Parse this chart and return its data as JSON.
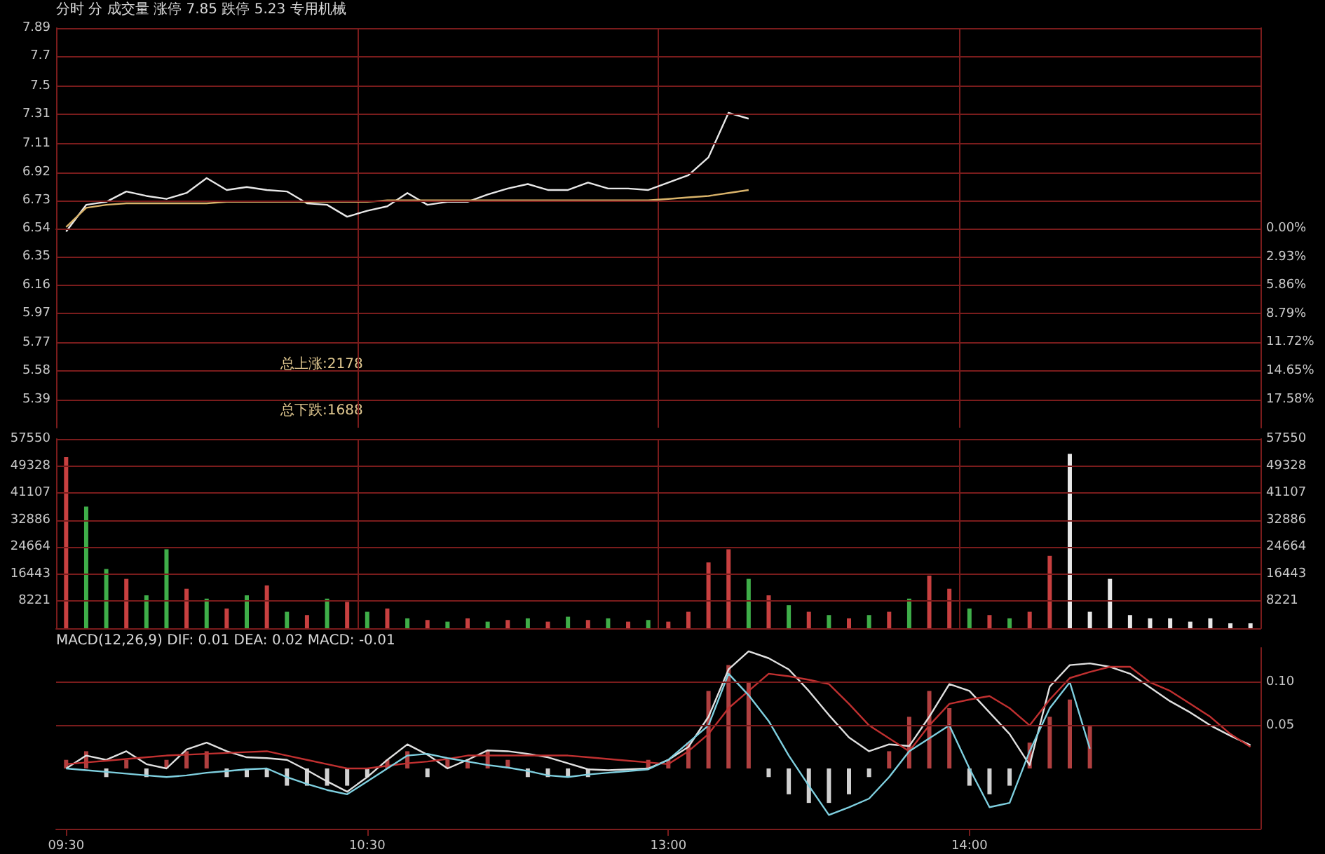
{
  "chart_data": [
    {
      "type": "line",
      "title": "分时 分 成交量 涨停 7.85 跌停 5.23 专用机械",
      "annotations": [
        "总上涨:2178",
        "总下跌:1688"
      ],
      "marker": "none",
      "grid": true,
      "tick_labels": "y",
      "categories": [
        null,
        null,
        null,
        null,
        null,
        null,
        null,
        null,
        null,
        null,
        null,
        null,
        null,
        null,
        null,
        null,
        null,
        null,
        null,
        null,
        null,
        null,
        null,
        null,
        null,
        null,
        null,
        null,
        null,
        null,
        null,
        null,
        null,
        null,
        null,
        null,
        null,
        null,
        null,
        null,
        null,
        null,
        null,
        null,
        null,
        null,
        null,
        null,
        null,
        null,
        null,
        null,
        null,
        null,
        null,
        null,
        null,
        null,
        null,
        null
      ],
      "ylim": [
        5.2,
        7.89
      ],
      "yticks": [
        5.39,
        5.58,
        5.77,
        5.97,
        6.16,
        6.35,
        6.54,
        6.73,
        6.92,
        7.11,
        7.31,
        7.5,
        7.7,
        7.89
      ],
      "y2lim": [
        -20.49,
        20.64
      ],
      "y2ticks": [
        {
          "value": 0,
          "label": "0.00%"
        },
        {
          "value": -2.93,
          "label": "2.93%"
        },
        {
          "value": -5.86,
          "label": "5.86%"
        },
        {
          "value": -8.79,
          "label": "8.79%"
        },
        {
          "value": -11.72,
          "label": "11.72%"
        },
        {
          "value": -14.65,
          "label": "14.65%"
        },
        {
          "value": -17.58,
          "label": "17.58%"
        }
      ],
      "series": [
        {
          "color": "#e8e8e8",
          "values": [
            6.52,
            6.7,
            6.72,
            6.79,
            6.76,
            6.74,
            6.78,
            6.88,
            6.8,
            6.82,
            6.8,
            6.79,
            6.71,
            6.7,
            6.62,
            6.66,
            6.69,
            6.78,
            6.7,
            6.72,
            6.72,
            6.77,
            6.81,
            6.84,
            6.8,
            6.8,
            6.85,
            6.81,
            6.81,
            6.8,
            6.85,
            6.9,
            7.02,
            7.32,
            7.28,
            null,
            null,
            null,
            null,
            null,
            null,
            null,
            null,
            null,
            null,
            null,
            null,
            null,
            null,
            null,
            null,
            null,
            null,
            null,
            null,
            null,
            null,
            null,
            null,
            null
          ]
        },
        {
          "color": "#d9b36a",
          "values": [
            6.55,
            6.68,
            6.7,
            6.71,
            6.71,
            6.71,
            6.71,
            6.71,
            6.72,
            6.72,
            6.72,
            6.72,
            6.72,
            6.72,
            6.72,
            6.72,
            6.73,
            6.73,
            6.73,
            6.73,
            6.73,
            6.73,
            6.73,
            6.73,
            6.73,
            6.73,
            6.73,
            6.73,
            6.73,
            6.73,
            6.74,
            6.75,
            6.76,
            6.78,
            6.8,
            null,
            null,
            null,
            null,
            null,
            null,
            null,
            null,
            null,
            null,
            null,
            null,
            null,
            null,
            null,
            null,
            null,
            null,
            null,
            null,
            null,
            null,
            null,
            null,
            null
          ]
        }
      ]
    },
    {
      "type": "bar",
      "grid": true,
      "tick_labels": "y",
      "categories": [
        null,
        null,
        null,
        null,
        null,
        null,
        null,
        null,
        null,
        null,
        null,
        null,
        null,
        null,
        null,
        null,
        null,
        null,
        null,
        null,
        null,
        null,
        null,
        null,
        null,
        null,
        null,
        null,
        null,
        null,
        null,
        null,
        null,
        null,
        null,
        null,
        null,
        null,
        null,
        null,
        null,
        null,
        null,
        null,
        null,
        null,
        null,
        null,
        null,
        null,
        null,
        null,
        null,
        null,
        null,
        null,
        null,
        null,
        null,
        null
      ],
      "ylim": [
        0,
        57550
      ],
      "yticks": [
        8221,
        16443,
        24664,
        32886,
        41107,
        49328,
        57550
      ],
      "y2lim": [
        0,
        57550
      ],
      "y2ticks": [
        8221,
        16443,
        24664,
        32886,
        41107,
        49328,
        57550
      ],
      "values": [
        52000,
        37000,
        18000,
        15000,
        10000,
        24000,
        12000,
        9000,
        6000,
        10000,
        13000,
        5000,
        4000,
        9000,
        8000,
        5000,
        6000,
        3000,
        2500,
        2000,
        3000,
        2000,
        2500,
        3000,
        2000,
        3500,
        2500,
        3000,
        2000,
        2500,
        2000,
        5000,
        20000,
        24000,
        15000,
        10000,
        7000,
        5000,
        4000,
        3000,
        4000,
        5000,
        9000,
        16000,
        12000,
        6000,
        4000,
        3000,
        5000,
        22000,
        53000,
        5000,
        15000,
        4000,
        3000,
        3000,
        2000,
        3000,
        1500,
        1500
      ],
      "colors": [
        "#c84040",
        "#3fae49",
        "#3fae49",
        "#c84040",
        "#3fae49",
        "#3fae49",
        "#c84040",
        "#3fae49",
        "#c84040",
        "#3fae49",
        "#c84040",
        "#3fae49",
        "#c84040",
        "#3fae49",
        "#c84040",
        "#3fae49",
        "#c84040",
        "#3fae49",
        "#c84040",
        "#3fae49",
        "#c84040",
        "#3fae49",
        "#c84040",
        "#3fae49",
        "#c84040",
        "#3fae49",
        "#c84040",
        "#3fae49",
        "#c84040",
        "#3fae49",
        "#c84040",
        "#c84040",
        "#c84040",
        "#c84040",
        "#3fae49",
        "#c84040",
        "#3fae49",
        "#c84040",
        "#3fae49",
        "#c84040",
        "#3fae49",
        "#c84040",
        "#3fae49",
        "#c84040",
        "#c84040",
        "#3fae49",
        "#c84040",
        "#3fae49",
        "#c84040",
        "#c84040",
        "#e8e8e8",
        "#e8e8e8",
        "#e8e8e8",
        "#e8e8e8",
        "#e8e8e8",
        "#e8e8e8",
        "#e8e8e8",
        "#e8e8e8",
        "#e8e8e8",
        "#e8e8e8"
      ]
    },
    {
      "type": "line",
      "title": "MACD(12,26,9) DIF: 0.01 DEA: 0.02 MACD: -0.01",
      "marker": "none",
      "grid": "y",
      "categories": [
        "09:30",
        null,
        null,
        null,
        null,
        null,
        null,
        null,
        null,
        null,
        null,
        null,
        null,
        null,
        null,
        "10:30",
        null,
        null,
        null,
        null,
        null,
        null,
        null,
        null,
        null,
        null,
        null,
        null,
        null,
        null,
        "13:00",
        null,
        null,
        null,
        null,
        null,
        null,
        null,
        null,
        null,
        null,
        null,
        null,
        null,
        null,
        "14:00",
        null,
        null,
        null,
        null,
        null,
        null,
        null,
        null,
        null,
        null,
        null,
        null,
        null,
        null
      ],
      "y2lim": [
        -0.07,
        0.14
      ],
      "y2ticks": [
        0.05,
        {
          "value": 0.1,
          "label": "0.10"
        }
      ],
      "series": [
        {
          "type": "bar",
          "axis": "y2",
          "values": [
            0.01,
            0.02,
            -0.01,
            0.01,
            -0.01,
            0.01,
            0.02,
            0.02,
            -0.01,
            -0.01,
            -0.01,
            -0.02,
            -0.02,
            -0.02,
            -0.02,
            -0.01,
            0.01,
            0.02,
            -0.01,
            0.01,
            0.01,
            0.02,
            0.01,
            -0.01,
            -0.01,
            -0.01,
            -0.01,
            0,
            0,
            0.01,
            0.01,
            0.03,
            0.09,
            0.12,
            0.1,
            -0.01,
            -0.03,
            -0.04,
            -0.04,
            -0.03,
            -0.01,
            0.02,
            0.06,
            0.09,
            0.07,
            -0.02,
            -0.03,
            -0.02,
            0.03,
            0.06,
            0.08,
            0.05,
            null,
            null,
            null,
            null,
            null,
            null,
            null,
            null
          ],
          "colors": [
            "#b04040",
            "#b04040",
            "#d0d0d0",
            "#b04040",
            "#d0d0d0",
            "#b04040",
            "#b04040",
            "#b04040",
            "#d0d0d0",
            "#d0d0d0",
            "#d0d0d0",
            "#d0d0d0",
            "#d0d0d0",
            "#d0d0d0",
            "#d0d0d0",
            "#d0d0d0",
            "#b04040",
            "#b04040",
            "#d0d0d0",
            "#b04040",
            "#b04040",
            "#b04040",
            "#b04040",
            "#d0d0d0",
            "#d0d0d0",
            "#d0d0d0",
            "#d0d0d0",
            "#b04040",
            "#b04040",
            "#b04040",
            "#b04040",
            "#b04040",
            "#b04040",
            "#b04040",
            "#b04040",
            "#d0d0d0",
            "#d0d0d0",
            "#d0d0d0",
            "#d0d0d0",
            "#d0d0d0",
            "#d0d0d0",
            "#b04040",
            "#b04040",
            "#b04040",
            "#b04040",
            "#d0d0d0",
            "#d0d0d0",
            "#d0d0d0",
            "#b04040",
            "#b04040",
            "#b04040",
            "#b04040",
            null,
            null,
            null,
            null,
            null,
            null,
            null,
            null
          ]
        },
        {
          "axis": "y2",
          "color": "#e0e0e0",
          "values": [
            0,
            0.015,
            0.01,
            0.02,
            0.005,
            0,
            0.022,
            0.03,
            0.02,
            0.013,
            0.012,
            0.01,
            -0.002,
            -0.015,
            -0.027,
            -0.01,
            0.01,
            0.028,
            0.016,
            0,
            0.01,
            0.021,
            0.02,
            0.017,
            0.013,
            0.006,
            -0.001,
            -0.002,
            -0.001,
            0,
            0.01,
            0.025,
            0.06,
            0.115,
            0.136,
            0.128,
            0.115,
            0.09,
            0.062,
            0.036,
            0.02,
            0.028,
            0.026,
            0.06,
            0.098,
            0.09,
            0.065,
            0.04,
            0.004,
            0.095,
            0.12,
            0.122,
            0.118,
            0.11,
            0.094,
            0.078,
            0.065,
            0.05,
            0.038,
            0.027
          ]
        },
        {
          "axis": "y2",
          "color": "#c03030",
          "values": [
            0.005,
            0.007,
            0.009,
            0.011,
            0.013,
            0.015,
            0.016,
            0.017,
            0.018,
            0.019,
            0.02,
            0.015,
            0.01,
            0.005,
            0,
            0,
            0.003,
            0.006,
            0.008,
            0.011,
            0.015,
            0.015,
            0.015,
            0.015,
            0.015,
            0.015,
            0.013,
            0.011,
            0.009,
            0.007,
            0.005,
            0.02,
            0.04,
            0.07,
            0.09,
            0.11,
            0.107,
            0.103,
            0.098,
            0.075,
            0.05,
            0.035,
            0.02,
            0.05,
            0.075,
            0.08,
            0.084,
            0.07,
            0.05,
            0.08,
            0.105,
            0.112,
            0.118,
            0.118,
            0.1,
            0.09,
            0.075,
            0.06,
            0.04,
            0.025
          ]
        },
        {
          "axis": "y2",
          "color": "#7fd0e0",
          "values": [
            0,
            -0.002,
            -0.004,
            -0.006,
            -0.008,
            -0.01,
            -0.008,
            -0.005,
            -0.003,
            -0.001,
            0,
            -0.01,
            -0.018,
            -0.025,
            -0.03,
            -0.015,
            0,
            0.015,
            0.017,
            0.012,
            0.008,
            0.004,
            0.001,
            -0.003,
            -0.008,
            -0.01,
            -0.007,
            -0.005,
            -0.003,
            -0.001,
            0.01,
            0.03,
            0.05,
            0.11,
            0.085,
            0.055,
            0.015,
            -0.02,
            -0.054,
            -0.045,
            -0.035,
            -0.01,
            0.02,
            0.035,
            0.05,
            0,
            -0.045,
            -0.04,
            0.02,
            0.07,
            0.1,
            0.023,
            null,
            null,
            null,
            null,
            null,
            null,
            null,
            null
          ]
        }
      ]
    }
  ]
}
